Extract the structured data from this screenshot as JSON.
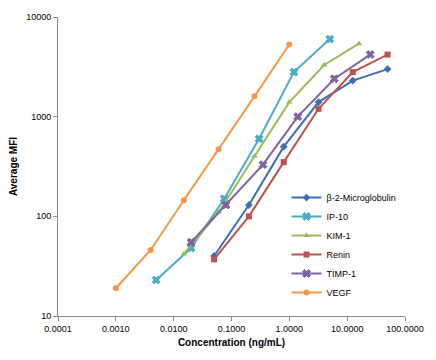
{
  "chart_data": {
    "type": "line",
    "log": true,
    "grid": false,
    "legend": "lower right",
    "x_label": "Concentration (ng/mL)",
    "y_label": "Average MFI",
    "xlim": [
      0.0001,
      100
    ],
    "xticks": [
      {
        "value": 0.0001,
        "label": "0.0001"
      },
      {
        "value": 0.001,
        "label": "0.0010"
      },
      {
        "value": 0.01,
        "label": "0.0100"
      },
      {
        "value": 0.1,
        "label": "0.1000"
      },
      {
        "value": 1,
        "label": "1.0000"
      },
      {
        "value": 10,
        "label": "10.0000"
      },
      {
        "value": 100,
        "label": "100.0000"
      }
    ],
    "ylim": [
      10,
      10000
    ],
    "yticks": [
      10,
      100,
      1000,
      10000
    ],
    "series": [
      {
        "name": "β-2-Microglobulin",
        "color": "#3c6eb4",
        "marker": "diamond",
        "x": [
          0.05,
          0.2,
          0.8,
          3.2,
          12.5,
          50
        ],
        "values": [
          40,
          130,
          500,
          1400,
          2300,
          3000
        ]
      },
      {
        "name": "IP-10",
        "color": "#4bacc6",
        "marker": "x",
        "x": [
          0.005,
          0.02,
          0.075,
          0.3,
          1.2,
          5
        ],
        "values": [
          23,
          48,
          150,
          600,
          2800,
          6000
        ]
      },
      {
        "name": "KIM-1",
        "color": "#9bbb59",
        "marker": "triangle-up",
        "x": [
          0.015,
          0.06,
          0.25,
          1,
          4,
          16
        ],
        "values": [
          42,
          110,
          400,
          1400,
          3300,
          5400
        ]
      },
      {
        "name": "Renin",
        "color": "#c0504d",
        "marker": "square",
        "x": [
          0.05,
          0.2,
          0.8,
          3.2,
          12.5,
          50
        ],
        "values": [
          37,
          100,
          350,
          1200,
          2800,
          4200
        ]
      },
      {
        "name": "TIMP-1",
        "color": "#8064a2",
        "marker": "x",
        "x": [
          0.02,
          0.08,
          0.35,
          1.4,
          6,
          25
        ],
        "values": [
          55,
          130,
          330,
          1000,
          2400,
          4200
        ]
      },
      {
        "name": "VEGF",
        "color": "#f79646",
        "marker": "circle",
        "x": [
          0.001,
          0.004,
          0.015,
          0.06,
          0.25,
          1
        ],
        "values": [
          19,
          46,
          145,
          470,
          1600,
          5300
        ]
      }
    ]
  }
}
